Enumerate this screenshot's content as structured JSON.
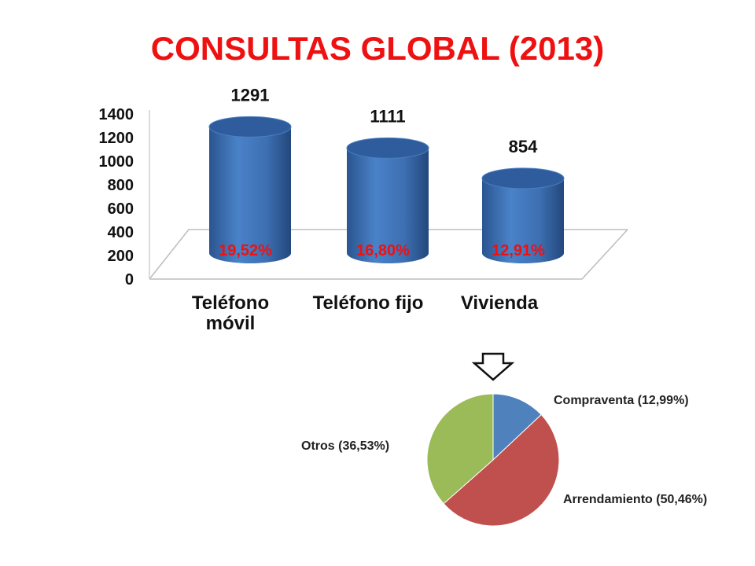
{
  "title": "CONSULTAS GLOBAL (2013)",
  "colors": {
    "title": "#ee1111",
    "bar": "#3f72b6",
    "pct": "#ee1111"
  },
  "chart_data": [
    {
      "type": "bar",
      "style": "3d-cylinder",
      "categories": [
        [
          "Teléfono",
          "móvil"
        ],
        [
          "Teléfono fijo"
        ],
        [
          "Vivienda"
        ]
      ],
      "values": [
        1291,
        1111,
        854
      ],
      "value_labels": [
        "1291",
        "1111",
        "854"
      ],
      "percent_labels": [
        "19,52%",
        "16,80%",
        "12,91%"
      ],
      "y_ticks": [
        "0",
        "200",
        "400",
        "600",
        "800",
        "1000",
        "1200",
        "1400"
      ],
      "ylim": [
        0,
        1400
      ],
      "grid": false
    },
    {
      "type": "pie",
      "slices": [
        {
          "label": "Compraventa (12,99%)",
          "value": 12.99,
          "color": "#4f81bd"
        },
        {
          "label": "Arrendamiento (50,46%)",
          "value": 50.46,
          "color": "#c0504d"
        },
        {
          "label": "Otros (36,53%)",
          "value": 36.53,
          "color": "#9bbb59"
        }
      ]
    }
  ],
  "arrow_icon": "down-arrow-icon"
}
